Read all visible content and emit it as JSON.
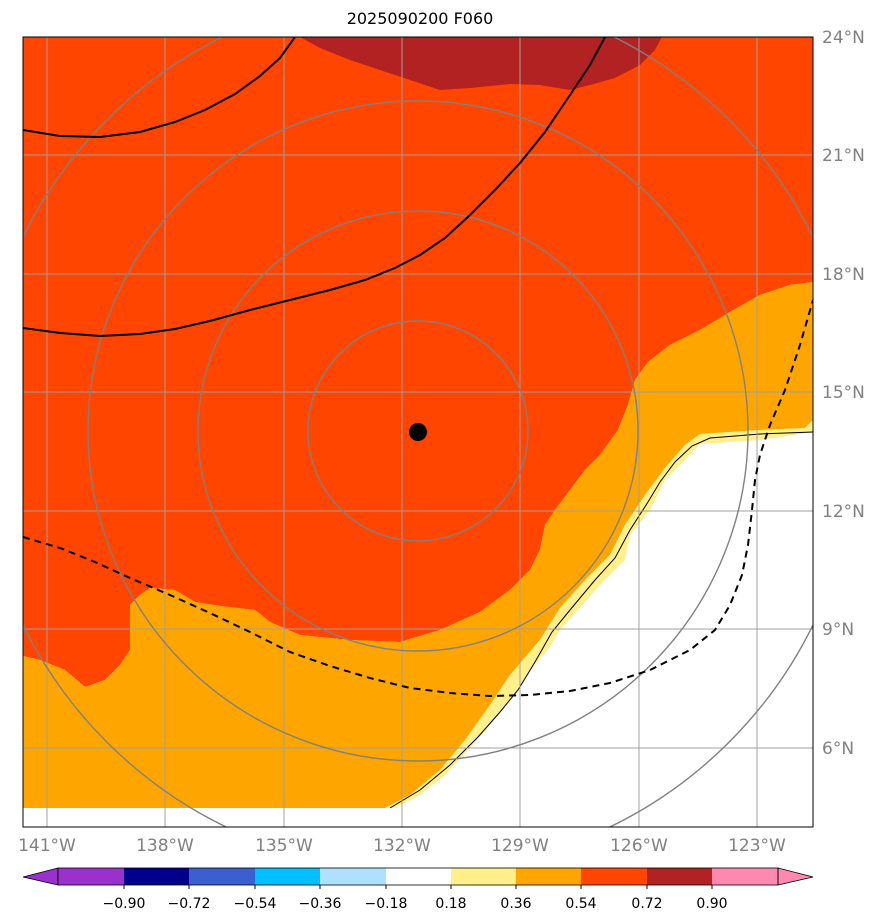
{
  "title": "2025090200 F060",
  "map": {
    "lon_range": [
      -141.0,
      -121.0
    ],
    "lat_range": [
      4.0,
      24.0
    ],
    "lon_ticks": [
      -141,
      -138,
      -135,
      -132,
      -129,
      -126,
      -123
    ],
    "lon_tick_labels": [
      "141°W",
      "138°W",
      "135°W",
      "132°W",
      "129°W",
      "126°W",
      "123°W"
    ],
    "lat_ticks": [
      6,
      9,
      12,
      15,
      18,
      21,
      24
    ],
    "lat_tick_labels": [
      "6°N",
      "9°N",
      "12°N",
      "15°N",
      "18°N",
      "21°N",
      "24°N"
    ],
    "storm_center": {
      "lon": -131.6,
      "lat": 14.0
    },
    "range_rings_deg": [
      2.8,
      5.6,
      8.4,
      11.2
    ],
    "grid": true,
    "colors": {
      "fill_072_090": "#b22222",
      "fill_054_072": "#ff4500",
      "fill_036_054": "#ffa500",
      "fill_018_036": "#fff08c",
      "grid": "#a0a0a0",
      "rings": "#808080"
    }
  },
  "colorbar": {
    "tick_labels": [
      "−0.90",
      "−0.72",
      "−0.54",
      "−0.36",
      "−0.18",
      "0.18",
      "0.36",
      "0.54",
      "0.72",
      "0.90"
    ],
    "colors": [
      "#9932cc",
      "#00008b",
      "#3b5fd0",
      "#00bfff",
      "#b0e0ff",
      "#ffffff",
      "#fff08c",
      "#ffa500",
      "#ff4500",
      "#b22222",
      "#ff88b0"
    ]
  }
}
